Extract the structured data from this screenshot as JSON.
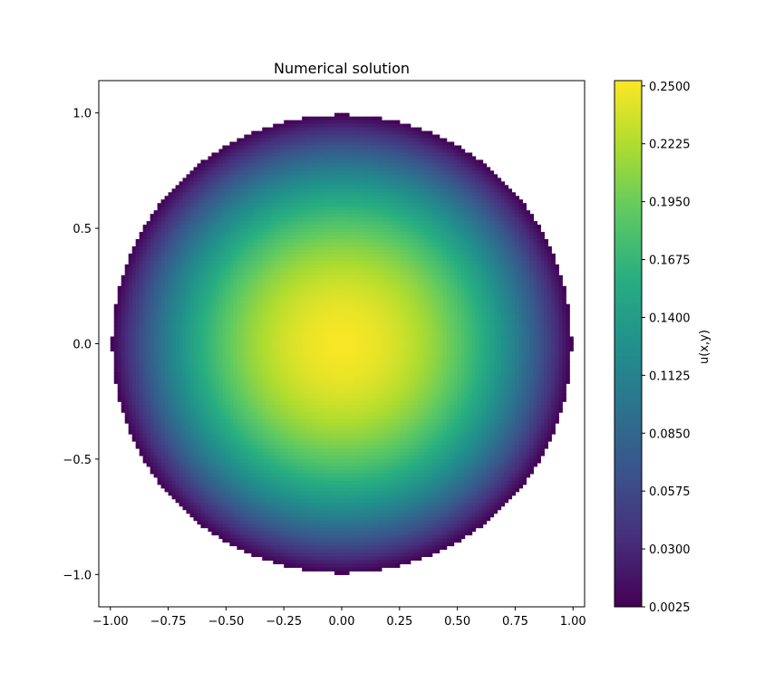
{
  "chart_data": {
    "type": "heatmap",
    "title": "Numerical solution",
    "xlabel": "",
    "ylabel": "",
    "xlim": [
      -1.05,
      1.05
    ],
    "ylim": [
      -1.14,
      1.14
    ],
    "x_ticks": [
      -1.0,
      -0.75,
      -0.5,
      -0.25,
      0.0,
      0.25,
      0.5,
      0.75,
      1.0
    ],
    "x_tick_labels": [
      "−1.00",
      "−0.75",
      "−0.50",
      "−0.25",
      "0.00",
      "0.25",
      "0.50",
      "0.75",
      "1.00"
    ],
    "y_ticks": [
      -1.0,
      -0.5,
      0.0,
      0.5,
      1.0
    ],
    "y_tick_labels": [
      "−1.0",
      "−0.5",
      "0.0",
      "0.5",
      "1.0"
    ],
    "grid": false,
    "domain": "unit disk x^2 + y^2 < 1",
    "field": "u(x,y) = (1 - x^2 - y^2) / 4",
    "colormap": "viridis",
    "colorbar": {
      "label": "u(x,y)",
      "min": 0.0025,
      "max": 0.2525,
      "ticks": [
        0.0025,
        0.03,
        0.0575,
        0.085,
        0.1125,
        0.14,
        0.1675,
        0.195,
        0.2225,
        0.25
      ],
      "tick_labels": [
        "0.0025",
        "0.0300",
        "0.0575",
        "0.0850",
        "0.1125",
        "0.1400",
        "0.1675",
        "0.1950",
        "0.2225",
        "0.2500"
      ]
    }
  }
}
